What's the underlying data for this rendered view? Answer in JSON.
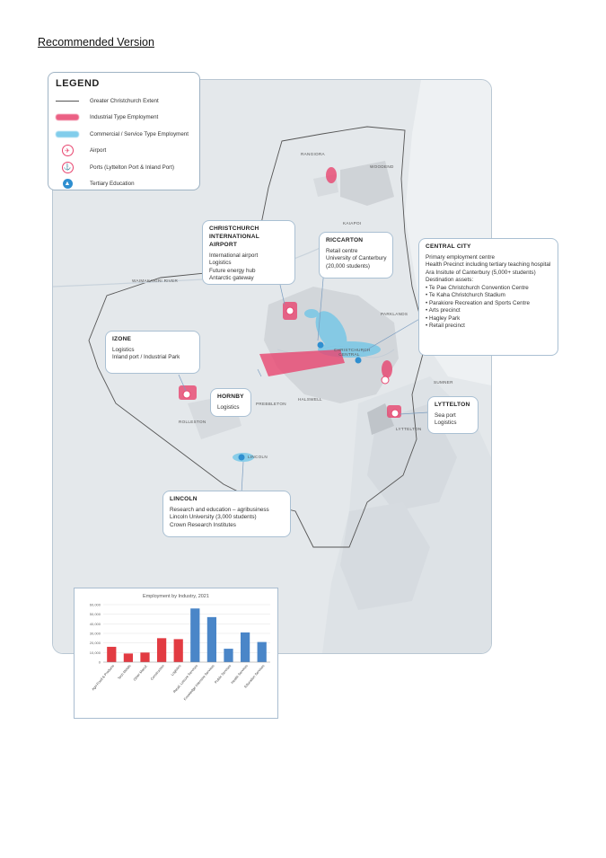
{
  "page": {
    "heading": "Recommended Version"
  },
  "legend": {
    "title": "LEGEND",
    "items": [
      {
        "symbol": "line",
        "label": "Greater Christchurch Extent"
      },
      {
        "symbol": "pink-band",
        "label": "Industrial Type Employment"
      },
      {
        "symbol": "blue-band",
        "label": "Commercial / Service Type Employment"
      },
      {
        "symbol": "airport-icon",
        "label": "Airport"
      },
      {
        "symbol": "port-icon",
        "label": "Ports (Lyttelton Port & Inland Port)"
      },
      {
        "symbol": "education-icon",
        "label": "Tertiary Education"
      }
    ]
  },
  "colors": {
    "industrial": "#e8456f",
    "commercial": "#6cc5e8",
    "bar_red": "#e23b42",
    "bar_blue": "#4a86c8",
    "callout_border": "#aac0d3"
  },
  "callouts": {
    "airport": {
      "title_1": "CHRISTCHURCH",
      "title_2": "INTERNATIONAL AIRPORT",
      "lines": [
        "International airport",
        "Logistics",
        "Future energy hub",
        "Antarctic gateway"
      ]
    },
    "riccarton": {
      "title": "RICCARTON",
      "lines": [
        "Retail centre",
        "University of Canterbury",
        "(20,000 students)"
      ]
    },
    "central_city": {
      "title": "CENTRAL CITY",
      "lines": [
        "Primary employment centre",
        "Health Precinct including tertiary teaching hospital",
        "Ara Insitute of Canterbury (5,000+ students)",
        "Destination assets:",
        "• Te Pae Christchurch Convention Centre",
        "• Te Kaha Christchurch Stadium",
        "• Parakiore Recreation and Sports Centre",
        "• Arts precinct",
        "• Hagley Park",
        "• Retail precinct"
      ]
    },
    "izone": {
      "title": "IZONE",
      "lines": [
        "Logistics",
        "Inland port / Industrial Park"
      ]
    },
    "hornby": {
      "title": "HORNBY",
      "lines": [
        "Logistics"
      ]
    },
    "lyttelton": {
      "title": "LYTTELTON",
      "lines": [
        "Sea port",
        "Logistics"
      ]
    },
    "lincoln": {
      "title": "LINCOLN",
      "lines": [
        "Research and education – agribusiness",
        "Lincoln University (3,000 students)",
        "Crown Research Institutes"
      ]
    }
  },
  "places": {
    "rangiora": "RANGIORA",
    "woodend": "WOODEND",
    "kaiapoi": "KAIAPOI",
    "waimakariri_river": "WAIMAKARIRI RIVER",
    "parklands": "PARKLANDS",
    "christchurch_central": "CHRISTCHURCH CENTRAL",
    "sumner": "SUMNER",
    "halswell": "HALSWELL",
    "prebbleton": "PREBBLETON",
    "rolleston": "ROLLESTON",
    "lyttelton": "LYTTELTON",
    "lincoln": "LINCOLN"
  },
  "chart_data": {
    "type": "bar",
    "title": "Employment by Industry, 2021",
    "categories": [
      "Agri-Food & Products",
      "Tech Metals",
      "Other Manuf.",
      "Construction",
      "Logistics",
      "Retail, Leisure Services",
      "Knowledge Intensive Services",
      "Public Services",
      "Health Services",
      "Education Services"
    ],
    "values": [
      16000,
      9000,
      10000,
      25000,
      24000,
      56000,
      47000,
      14000,
      31000,
      21000
    ],
    "bar_colors": [
      "red",
      "red",
      "red",
      "red",
      "red",
      "blue",
      "blue",
      "blue",
      "blue",
      "blue"
    ],
    "ylim": [
      0,
      60000
    ],
    "yticks": [
      "0",
      "10,000",
      "20,000",
      "30,000",
      "40,000",
      "50,000",
      "60,000"
    ],
    "xlabel": "",
    "ylabel": "",
    "grid": true
  }
}
